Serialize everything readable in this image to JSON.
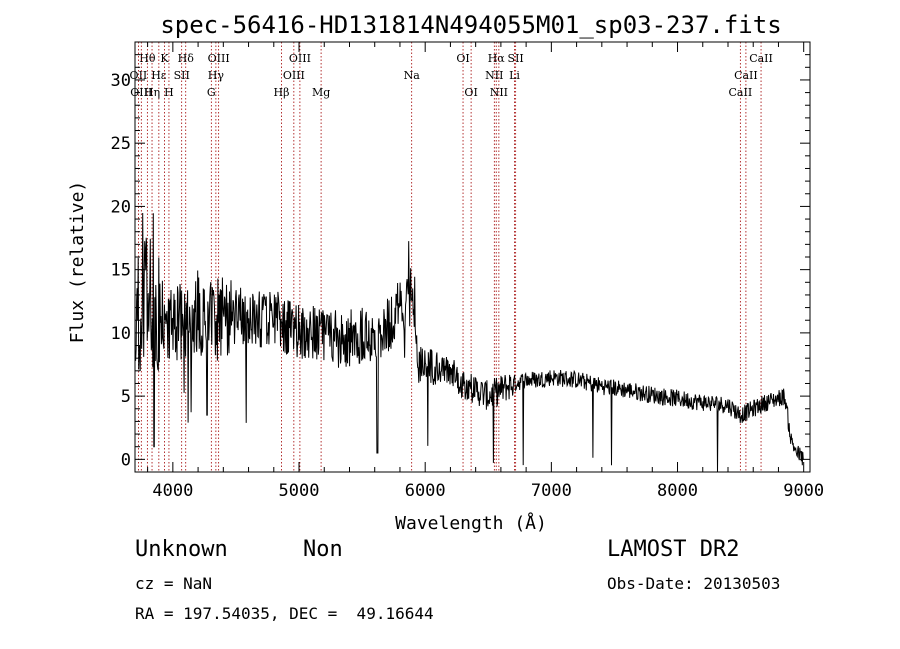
{
  "chart_data": {
    "type": "line",
    "title": "spec-56416-HD131814N494055M01_sp03-237.fits",
    "xlabel": "Wavelength (Å)",
    "ylabel": "Flux (relative)",
    "xlim": [
      3700,
      9050
    ],
    "ylim": [
      -1,
      33
    ],
    "xticks": [
      4000,
      5000,
      6000,
      7000,
      8000,
      9000
    ],
    "yticks": [
      0,
      5,
      10,
      15,
      20,
      25,
      30
    ],
    "line_color": "#000000",
    "marker_color": "#a00000",
    "lines": [
      {
        "label": "Hθ",
        "x": 3798,
        "row": 0
      },
      {
        "label": "OII",
        "x": 3727,
        "row": 1
      },
      {
        "label": "Hε",
        "x": 3889,
        "row": 1
      },
      {
        "label": "OIII",
        "x": 3750,
        "row": 2
      },
      {
        "label": "Hη",
        "x": 3835,
        "row": 2
      },
      {
        "label": "K",
        "x": 3934,
        "row": 0
      },
      {
        "label": "SII",
        "x": 4070,
        "row": 1
      },
      {
        "label": "H",
        "x": 3969,
        "row": 2
      },
      {
        "label": "Hδ",
        "x": 4102,
        "row": 0
      },
      {
        "label": "OIII",
        "x": 4363,
        "row": 0
      },
      {
        "label": "Hγ",
        "x": 4341,
        "row": 1
      },
      {
        "label": "G",
        "x": 4305,
        "row": 2
      },
      {
        "label": "OIII",
        "x": 5007,
        "row": 0
      },
      {
        "label": "OIII",
        "x": 4959,
        "row": 1
      },
      {
        "label": "Hβ",
        "x": 4861,
        "row": 2
      },
      {
        "label": "Mg",
        "x": 5175,
        "row": 2
      },
      {
        "label": "Na",
        "x": 5893,
        "row": 1
      },
      {
        "label": "OI",
        "x": 6300,
        "row": 0
      },
      {
        "label": "OI",
        "x": 6364,
        "row": 2
      },
      {
        "label": "Hα",
        "x": 6563,
        "row": 0
      },
      {
        "label": "NII",
        "x": 6548,
        "row": 1
      },
      {
        "label": "NII",
        "x": 6584,
        "row": 2
      },
      {
        "label": "SII",
        "x": 6717,
        "row": 0
      },
      {
        "label": "Li",
        "x": 6708,
        "row": 1
      },
      {
        "label": "CaII",
        "x": 8662,
        "row": 0
      },
      {
        "label": "CaII",
        "x": 8542,
        "row": 1
      },
      {
        "label": "CaII",
        "x": 8498,
        "row": 2
      }
    ],
    "continuum": [
      [
        3700,
        11
      ],
      [
        3760,
        12
      ],
      [
        3800,
        13
      ],
      [
        3850,
        12
      ],
      [
        3900,
        11.5
      ],
      [
        4000,
        11
      ],
      [
        4100,
        11
      ],
      [
        4200,
        11.5
      ],
      [
        4300,
        11
      ],
      [
        4400,
        11.5
      ],
      [
        4500,
        11.5
      ],
      [
        4600,
        11
      ],
      [
        4700,
        11
      ],
      [
        4800,
        11.5
      ],
      [
        4900,
        10.5
      ],
      [
        5000,
        10
      ],
      [
        5100,
        10
      ],
      [
        5200,
        9.5
      ],
      [
        5300,
        9.5
      ],
      [
        5400,
        9.5
      ],
      [
        5500,
        10
      ],
      [
        5600,
        10
      ],
      [
        5700,
        10.5
      ],
      [
        5800,
        12
      ],
      [
        5900,
        13
      ],
      [
        5950,
        7.5
      ],
      [
        6000,
        7.5
      ],
      [
        6100,
        7
      ],
      [
        6200,
        7
      ],
      [
        6300,
        6
      ],
      [
        6400,
        5.5
      ],
      [
        6500,
        5
      ],
      [
        6600,
        5.5
      ],
      [
        6700,
        6
      ],
      [
        6800,
        6.3
      ],
      [
        6900,
        6.3
      ],
      [
        7000,
        6.5
      ],
      [
        7200,
        6.3
      ],
      [
        7400,
        5.8
      ],
      [
        7600,
        5.5
      ],
      [
        7800,
        5.1
      ],
      [
        8000,
        4.8
      ],
      [
        8200,
        4.5
      ],
      [
        8400,
        4.3
      ],
      [
        8500,
        3.5
      ],
      [
        8600,
        4
      ],
      [
        8700,
        4.5
      ],
      [
        8850,
        5
      ],
      [
        8900,
        1.5
      ],
      [
        8950,
        0.5
      ],
      [
        9000,
        0
      ]
    ]
  },
  "info": {
    "object_class": "Unknown",
    "subclass": "Non",
    "survey": "LAMOST DR2",
    "cz": "cz = NaN",
    "obs_date": "Obs-Date: 20130503",
    "coords": "RA = 197.54035, DEC =  49.16644"
  }
}
